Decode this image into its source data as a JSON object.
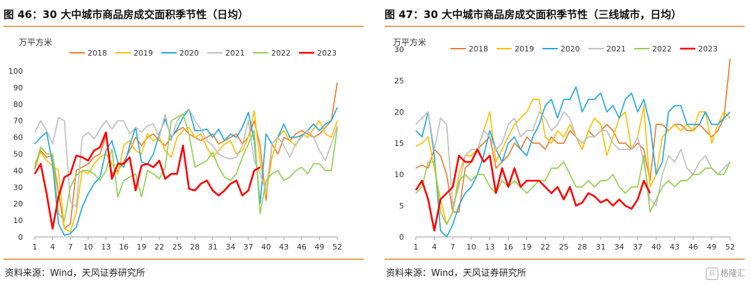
{
  "panels": [
    {
      "title": "图 46：30 大中城市商品房成交面积季节性（日均）",
      "source": "资料来源：Wind，天风证券研究所"
    },
    {
      "title": "图 47：30 大中城市商品房成交面积季节性（三线城市，日均）",
      "source": "资料来源：Wind，天风证券研究所"
    }
  ],
  "watermark": "格隆汇",
  "chart_data": [
    {
      "type": "line",
      "ylabel": "万平方米",
      "ylim": [
        0,
        100
      ],
      "yticks": [
        0,
        10,
        20,
        30,
        40,
        50,
        60,
        70,
        80,
        90,
        100
      ],
      "xticks": [
        1,
        4,
        7,
        10,
        13,
        16,
        19,
        22,
        25,
        28,
        31,
        34,
        37,
        40,
        43,
        46,
        49,
        52
      ],
      "legend_position": "top",
      "series": [
        {
          "name": "2018",
          "color": "#ed7d31",
          "values": [
            41,
            52,
            48,
            49,
            27,
            5,
            8,
            40,
            42,
            44,
            48,
            50,
            61,
            38,
            40,
            45,
            52,
            60,
            55,
            60,
            62,
            58,
            55,
            60,
            64,
            66,
            62,
            60,
            58,
            60,
            62,
            56,
            58,
            60,
            62,
            56,
            60,
            70,
            55,
            22,
            56,
            50,
            60,
            58,
            62,
            64,
            62,
            60,
            62,
            66,
            70,
            93
          ]
        },
        {
          "name": "2019",
          "color": "#ffc000",
          "values": [
            44,
            51,
            46,
            43,
            40,
            5,
            3,
            15,
            40,
            38,
            44,
            48,
            50,
            44,
            38,
            55,
            58,
            52,
            50,
            62,
            58,
            60,
            52,
            48,
            60,
            64,
            66,
            60,
            62,
            54,
            48,
            52,
            56,
            58,
            50,
            52,
            60,
            76,
            45,
            25,
            48,
            60,
            64,
            58,
            55,
            62,
            60,
            65,
            70,
            62,
            60,
            70
          ]
        },
        {
          "name": "2020",
          "color": "#1fa9e1",
          "values": [
            56,
            60,
            63,
            44,
            8,
            1,
            2,
            6,
            18,
            26,
            32,
            36,
            52,
            58,
            45,
            42,
            55,
            66,
            45,
            44,
            50,
            62,
            71,
            60,
            65,
            72,
            77,
            64,
            64,
            65,
            60,
            65,
            58,
            62,
            60,
            66,
            75,
            58,
            20,
            62,
            56,
            60,
            68,
            60,
            60,
            61,
            64,
            68,
            64,
            68,
            70,
            78
          ]
        },
        {
          "name": "2021",
          "color": "#bfbfbf",
          "values": [
            63,
            70,
            64,
            56,
            72,
            70,
            21,
            18,
            60,
            63,
            59,
            65,
            70,
            65,
            70,
            70,
            62,
            66,
            63,
            67,
            68,
            60,
            74,
            58,
            70,
            74,
            77,
            70,
            65,
            58,
            55,
            50,
            48,
            47,
            48,
            55,
            70,
            46,
            38,
            27,
            56,
            60,
            55,
            48,
            56,
            60,
            64,
            60,
            52,
            46,
            56,
            67
          ]
        },
        {
          "name": "2022",
          "color": "#92d050",
          "values": [
            42,
            54,
            50,
            50,
            14,
            10,
            30,
            37,
            40,
            40,
            38,
            34,
            40,
            53,
            24,
            34,
            36,
            38,
            24,
            40,
            38,
            35,
            42,
            70,
            72,
            74,
            62,
            42,
            44,
            46,
            51,
            42,
            36,
            34,
            38,
            48,
            56,
            64,
            14,
            34,
            38,
            40,
            34,
            36,
            40,
            42,
            38,
            44,
            44,
            40,
            40,
            66
          ]
        },
        {
          "name": "2023",
          "color": "#ff0000",
          "values": [
            38,
            44,
            26,
            5,
            24,
            36,
            38,
            49,
            48,
            46,
            52,
            54,
            63,
            35,
            44,
            44,
            48,
            28,
            43,
            44,
            42,
            46,
            35,
            38,
            38,
            55,
            29,
            28,
            32,
            34,
            28,
            25,
            28,
            32,
            34,
            25,
            28,
            40,
            42
          ]
        }
      ]
    },
    {
      "type": "line",
      "ylabel": "万平方米",
      "ylim": [
        0,
        30
      ],
      "yticks": [
        0,
        5,
        10,
        15,
        20,
        25,
        30
      ],
      "xticks": [
        1,
        4,
        7,
        10,
        13,
        16,
        19,
        22,
        25,
        28,
        31,
        34,
        37,
        40,
        43,
        46,
        49,
        52
      ],
      "legend_position": "top",
      "series": [
        {
          "name": "2018",
          "color": "#ed7d31",
          "values": [
            11,
            11.5,
            11,
            14,
            13,
            10,
            4,
            4,
            11,
            12,
            14,
            15,
            16,
            11,
            12,
            13,
            15,
            14,
            16,
            15,
            15,
            14,
            16,
            15,
            15,
            17,
            16,
            14,
            17,
            16,
            17,
            18,
            17,
            15,
            15,
            14,
            15,
            14,
            9,
            18,
            18,
            17,
            18,
            18,
            17,
            17,
            18,
            17,
            16,
            17,
            19,
            28.5
          ]
        },
        {
          "name": "2019",
          "color": "#ffc000",
          "values": [
            14.5,
            15,
            16,
            11,
            6,
            2,
            4,
            10,
            13,
            13,
            14,
            17,
            20,
            12,
            14,
            16,
            18,
            19,
            20,
            22,
            22,
            16,
            15,
            17,
            16,
            18,
            16,
            14,
            17,
            19,
            18,
            13,
            16,
            19,
            20,
            14,
            16,
            21,
            8,
            10,
            16,
            17,
            18,
            17,
            18,
            17,
            20,
            20,
            15,
            18,
            20,
            19
          ]
        },
        {
          "name": "2020",
          "color": "#1fa9e1",
          "values": [
            17,
            16,
            20,
            13,
            1,
            0,
            2,
            5,
            7,
            8,
            10,
            13,
            17,
            14,
            12,
            15,
            16,
            14,
            13,
            16,
            18,
            21,
            22,
            19,
            22,
            22,
            24,
            20,
            22,
            22,
            23,
            20,
            21,
            19,
            22,
            23,
            20,
            22,
            18,
            10,
            12,
            20,
            21,
            21,
            18,
            18,
            18,
            20,
            18,
            18,
            19,
            20
          ]
        },
        {
          "name": "2021",
          "color": "#bfbfbf",
          "values": [
            18,
            19,
            20,
            14,
            19,
            18,
            5,
            8,
            13,
            14,
            14,
            17,
            16,
            14,
            15,
            18,
            19,
            16,
            17,
            17,
            20,
            19,
            17,
            18,
            20,
            19,
            16,
            15,
            16,
            16,
            17,
            17,
            15,
            14,
            14,
            14,
            16,
            12,
            6,
            5,
            10,
            13,
            12,
            14,
            11,
            10,
            12,
            13,
            11,
            10,
            11,
            12
          ]
        },
        {
          "name": "2022",
          "color": "#92d050",
          "values": [
            7,
            8,
            12,
            12,
            4,
            2,
            4,
            9,
            10,
            9,
            10,
            10,
            8,
            7,
            9,
            8,
            9,
            8,
            7,
            8,
            9,
            9,
            11,
            11,
            12,
            10,
            8,
            8,
            9,
            8,
            9,
            9,
            10,
            8,
            7,
            8,
            8,
            13,
            4,
            6,
            8,
            9,
            8,
            9,
            9,
            10,
            10,
            11,
            11,
            10,
            10,
            12
          ]
        },
        {
          "name": "2023",
          "color": "#ff0000",
          "values": [
            7.5,
            9,
            6,
            1,
            6,
            7,
            8,
            13,
            12,
            12,
            14,
            12,
            13,
            7,
            11,
            8,
            11,
            8,
            9,
            9,
            9,
            8,
            7,
            8,
            6,
            8,
            5,
            5.5,
            7,
            6.5,
            5.5,
            6,
            5,
            6,
            5,
            4.5,
            6,
            9,
            7
          ]
        }
      ]
    }
  ]
}
